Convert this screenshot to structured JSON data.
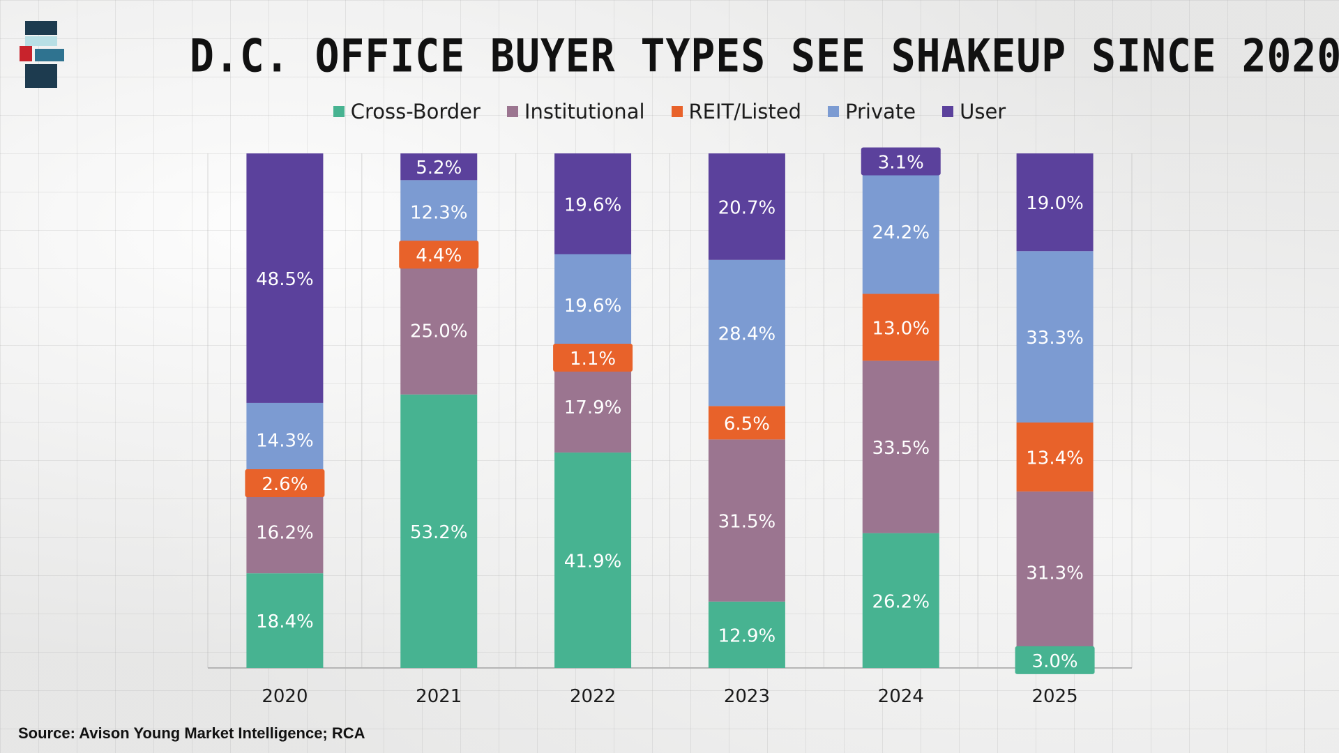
{
  "title": "D.C. OFFICE BUYER TYPES SEE SHAKEUP SINCE 2020",
  "source": "Source: Avison Young Market Intelligence; RCA",
  "logo": {
    "colors": [
      "#1d3b4f",
      "#b8dfe5",
      "#c8232c",
      "#2f7390"
    ]
  },
  "chart_data": {
    "type": "bar",
    "stacked": true,
    "title": "D.C. OFFICE BUYER TYPES SEE SHAKEUP SINCE 2020",
    "xlabel": "",
    "ylabel": "",
    "ylim": [
      0,
      100
    ],
    "legend_position": "top",
    "categories": [
      "2020",
      "2021",
      "2022",
      "2023",
      "2024",
      "2025"
    ],
    "series": [
      {
        "name": "Cross-Border",
        "color": "#47b391",
        "values": [
          18.4,
          53.2,
          41.9,
          12.9,
          26.2,
          3.0
        ],
        "labels": [
          "18.4%",
          "53.2%",
          "41.9%",
          "12.9%",
          "26.2%",
          "3.0%"
        ]
      },
      {
        "name": "Institutional",
        "color": "#9b7590",
        "values": [
          16.2,
          25.0,
          17.9,
          31.5,
          33.5,
          31.3
        ],
        "labels": [
          "16.2%",
          "25.0%",
          "17.9%",
          "31.5%",
          "33.5%",
          "31.3%"
        ]
      },
      {
        "name": "REIT/Listed",
        "color": "#e8622a",
        "values": [
          2.6,
          4.4,
          1.1,
          6.5,
          13.0,
          13.4
        ],
        "labels": [
          "2.6%",
          "4.4%",
          "1.1%",
          "6.5%",
          "13.0%",
          "13.4%"
        ]
      },
      {
        "name": "Private",
        "color": "#7c9bd2",
        "values": [
          14.3,
          12.3,
          19.6,
          28.4,
          24.2,
          33.3
        ],
        "labels": [
          "14.3%",
          "12.3%",
          "19.6%",
          "28.4%",
          "24.2%",
          "33.3%"
        ]
      },
      {
        "name": "User",
        "color": "#5b419c",
        "values": [
          48.5,
          5.2,
          19.6,
          20.7,
          3.1,
          19.0
        ],
        "labels": [
          "48.5%",
          "5.2%",
          "19.6%",
          "20.7%",
          "3.1%",
          "19.0%"
        ]
      }
    ]
  }
}
